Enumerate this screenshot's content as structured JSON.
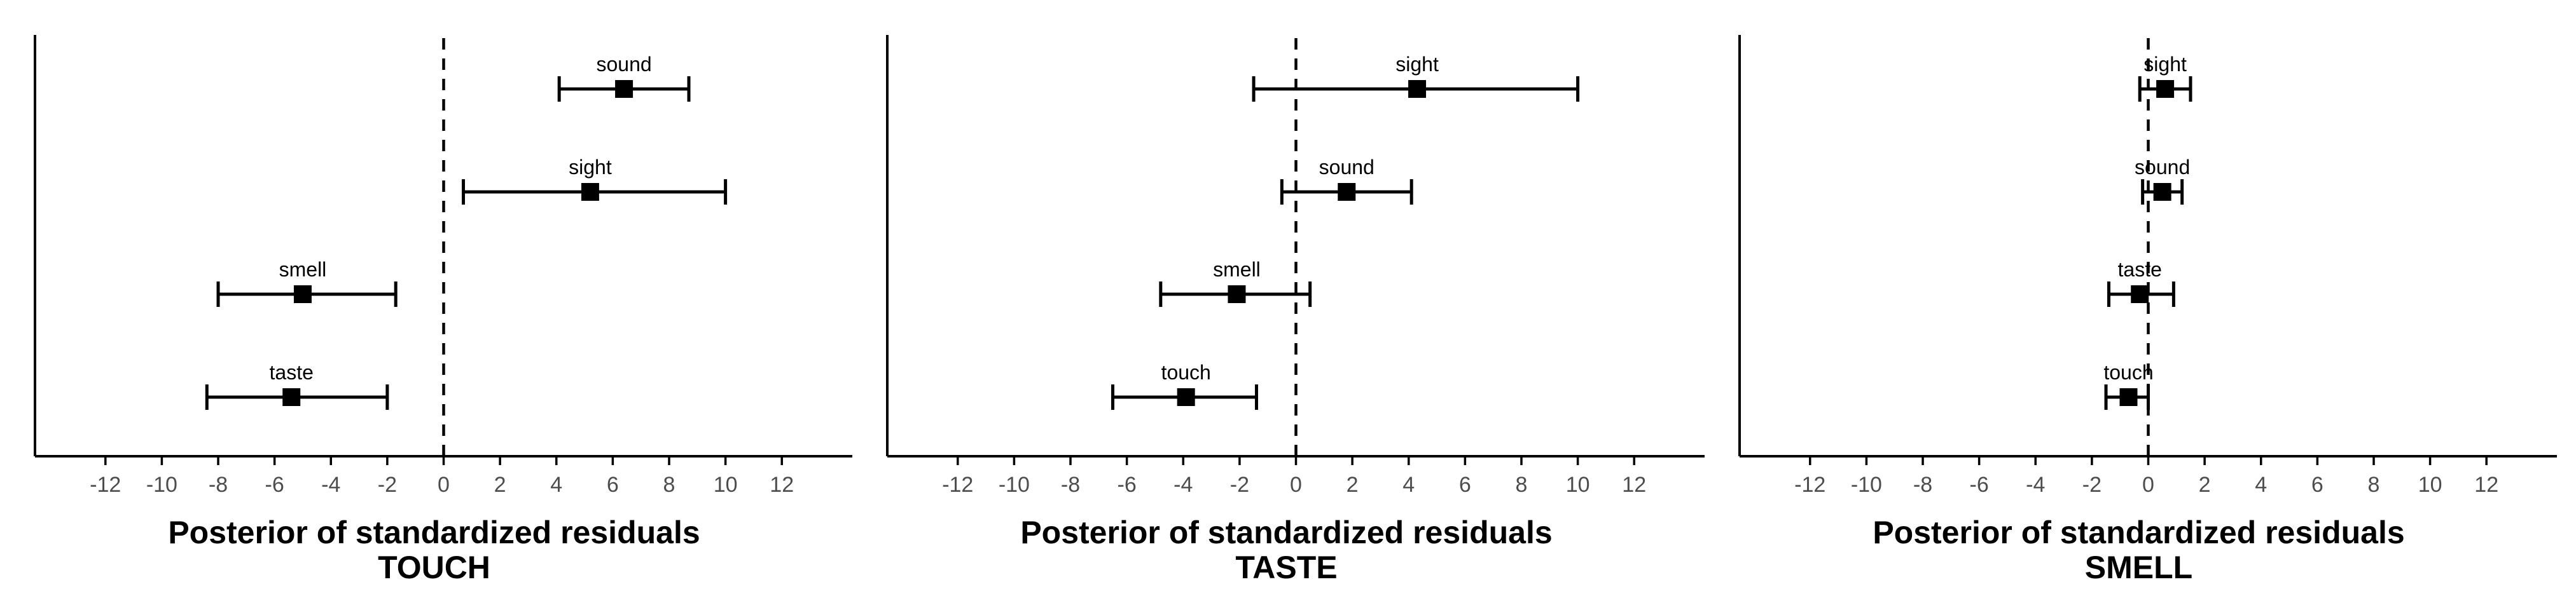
{
  "chart_data": [
    {
      "type": "forest",
      "title": "TOUCH",
      "xlabel": "Posterior of standardized residuals",
      "xlim": [
        -14.5,
        14.5
      ],
      "xticks": [
        -12,
        -10,
        -8,
        -6,
        -4,
        -2,
        0,
        2,
        4,
        6,
        8,
        10,
        12
      ],
      "reference_line": 0,
      "points": [
        {
          "label": "sound",
          "estimate": 6.4,
          "lower": 4.1,
          "upper": 8.7
        },
        {
          "label": "sight",
          "estimate": 5.2,
          "lower": 0.7,
          "upper": 10.0
        },
        {
          "label": "smell",
          "estimate": -5.0,
          "lower": -8.0,
          "upper": -1.7
        },
        {
          "label": "taste",
          "estimate": -5.4,
          "lower": -8.4,
          "upper": -2.0
        }
      ]
    },
    {
      "type": "forest",
      "title": "TASTE",
      "xlabel": "Posterior of standardized residuals",
      "xlim": [
        -14.5,
        14.5
      ],
      "xticks": [
        -12,
        -10,
        -8,
        -6,
        -4,
        -2,
        0,
        2,
        4,
        6,
        8,
        10,
        12
      ],
      "reference_line": 0,
      "points": [
        {
          "label": "sight",
          "estimate": 4.3,
          "lower": -1.5,
          "upper": 10.0
        },
        {
          "label": "sound",
          "estimate": 1.8,
          "lower": -0.5,
          "upper": 4.1
        },
        {
          "label": "smell",
          "estimate": -2.1,
          "lower": -4.8,
          "upper": 0.5
        },
        {
          "label": "touch",
          "estimate": -3.9,
          "lower": -6.5,
          "upper": -1.4
        }
      ]
    },
    {
      "type": "forest",
      "title": "SMELL",
      "xlabel": "Posterior of standardized residuals",
      "xlim": [
        -14.5,
        14.5
      ],
      "xticks": [
        -12,
        -10,
        -8,
        -6,
        -4,
        -2,
        0,
        2,
        4,
        6,
        8,
        10,
        12
      ],
      "reference_line": 0,
      "points": [
        {
          "label": "sight",
          "estimate": 0.6,
          "lower": -0.3,
          "upper": 1.5
        },
        {
          "label": "sound",
          "estimate": 0.5,
          "lower": -0.2,
          "upper": 1.2
        },
        {
          "label": "taste",
          "estimate": -0.3,
          "lower": -1.4,
          "upper": 0.9
        },
        {
          "label": "touch",
          "estimate": -0.7,
          "lower": -1.5,
          "upper": 0.0
        }
      ]
    }
  ]
}
